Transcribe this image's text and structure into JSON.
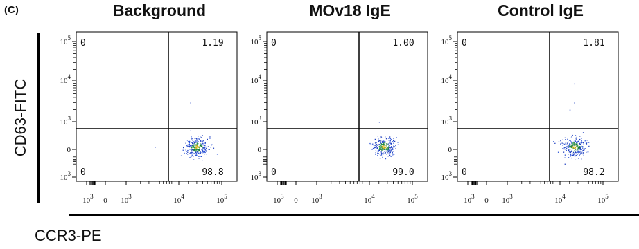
{
  "panel_label": "(C)",
  "ylabel": "CD63-FITC",
  "xlabel": "CCR3-PE",
  "chart_data": [
    {
      "type": "scatter",
      "title": "Background",
      "xlabel": "CCR3-PE",
      "ylabel": "CD63-FITC",
      "x_ticks": [
        "-10^3",
        "0",
        "10^3",
        "10^4",
        "10^5"
      ],
      "y_ticks": [
        "-10^3",
        "0",
        "10^3",
        "10^4",
        "10^5"
      ],
      "quadrant_values": {
        "upper_left": "0",
        "upper_right": "1.19",
        "lower_left": "0",
        "lower_right": "98.8"
      },
      "cluster_center": [
        30000,
        100
      ],
      "outliers": [
        [
          22000,
          3000
        ],
        [
          4000,
          100
        ]
      ]
    },
    {
      "type": "scatter",
      "title": "MOv18 IgE",
      "xlabel": "CCR3-PE",
      "ylabel": "CD63-FITC",
      "x_ticks": [
        "-10^3",
        "0",
        "10^3",
        "10^4",
        "10^5"
      ],
      "y_ticks": [
        "-10^3",
        "0",
        "10^3",
        "10^4",
        "10^5"
      ],
      "quadrant_values": {
        "upper_left": "0",
        "upper_right": "1.00",
        "lower_left": "0",
        "lower_right": "99.0"
      },
      "cluster_center": [
        25000,
        100
      ],
      "outliers": [
        [
          20000,
          1000
        ]
      ]
    },
    {
      "type": "scatter",
      "title": "Control IgE",
      "xlabel": "CCR3-PE",
      "ylabel": "CD63-FITC",
      "x_ticks": [
        "-10^3",
        "0",
        "10^3",
        "10^4",
        "10^5"
      ],
      "y_ticks": [
        "-10^3",
        "0",
        "10^3",
        "10^4",
        "10^5"
      ],
      "quadrant_values": {
        "upper_left": "0",
        "upper_right": "1.81",
        "lower_left": "0",
        "lower_right": "98.2"
      },
      "cluster_center": [
        25000,
        100
      ],
      "outliers": [
        [
          25000,
          9000
        ],
        [
          25000,
          3000
        ],
        [
          20000,
          2000
        ]
      ]
    }
  ]
}
